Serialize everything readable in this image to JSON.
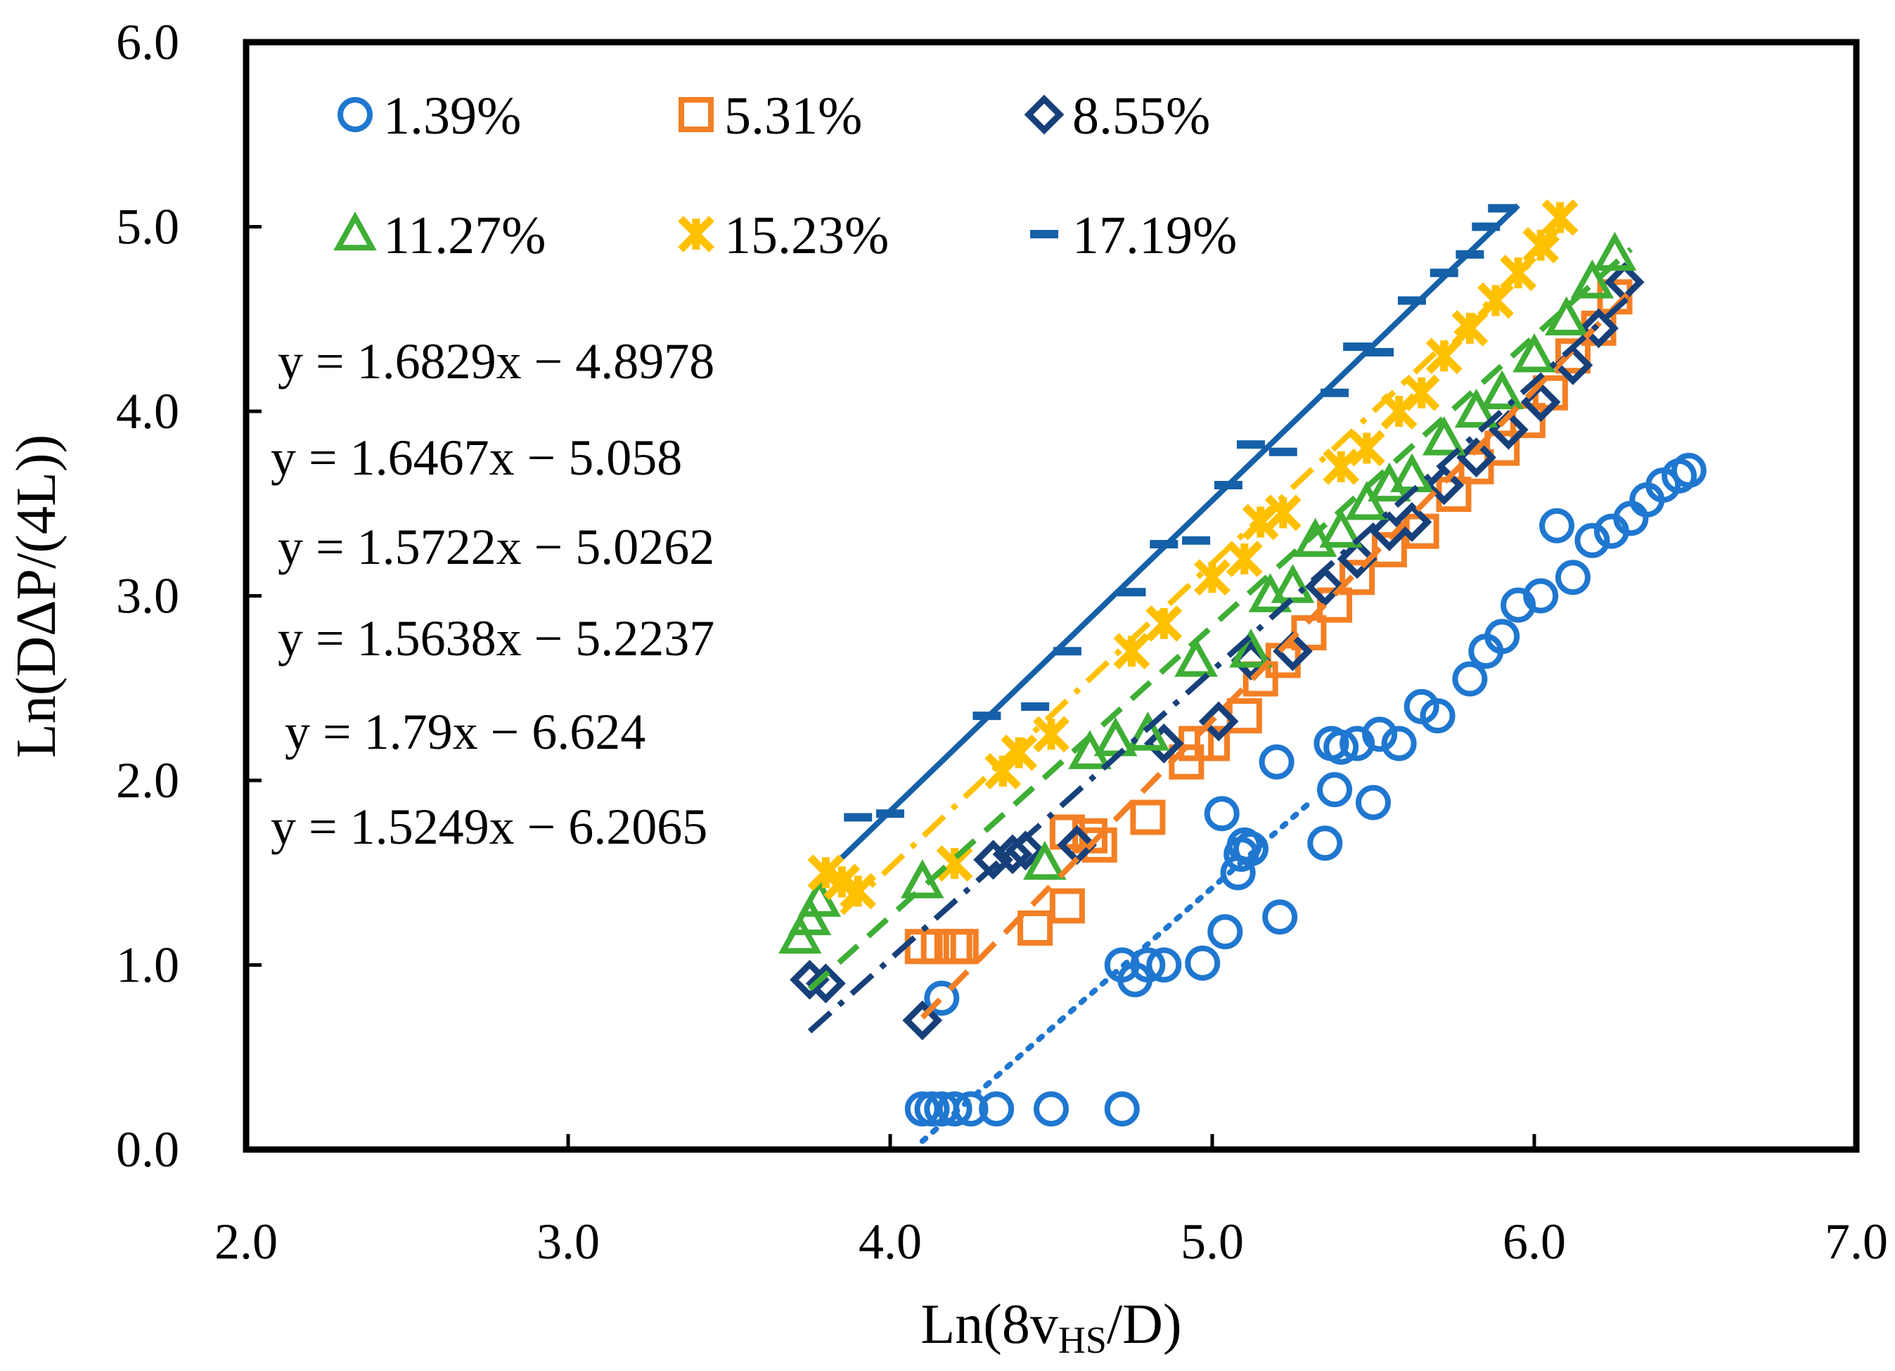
{
  "chart_data": {
    "type": "scatter",
    "title": "",
    "xlabel": "Ln(8v",
    "xlabel_sub": "HS",
    "xlabel_tail": "/D)",
    "ylabel": "Ln(DΔP/(4L))",
    "xlim": [
      2.0,
      7.0
    ],
    "ylim": [
      0.0,
      6.0
    ],
    "xticks": [
      "2.0",
      "3.0",
      "4.0",
      "5.0",
      "6.0",
      "7.0"
    ],
    "yticks": [
      "0.0",
      "1.0",
      "2.0",
      "3.0",
      "4.0",
      "5.0",
      "6.0"
    ],
    "grid": false,
    "legend_position": "top-left",
    "series": [
      {
        "name": "1.39%",
        "marker": "circle",
        "color": "#1F77D0",
        "line": "dotted",
        "slope": 1.5249,
        "intercept": -6.2065,
        "fit_x": [
          4.1,
          5.3
        ],
        "x": [
          4.1,
          4.13,
          4.16,
          4.2,
          4.25,
          4.33,
          4.5,
          4.72,
          4.16,
          4.72,
          4.76,
          4.8,
          4.85,
          4.97,
          5.04,
          5.08,
          5.1,
          5.21,
          5.03,
          5.09,
          5.12,
          5.2,
          5.35,
          5.38,
          5.37,
          5.4,
          5.45,
          5.5,
          5.52,
          5.58,
          5.65,
          5.7,
          5.8,
          5.85,
          5.9,
          5.95,
          6.02,
          6.07,
          6.12,
          6.18,
          6.24,
          6.3,
          6.35,
          6.4,
          6.45,
          6.48
        ],
        "y": [
          0.22,
          0.22,
          0.22,
          0.22,
          0.22,
          0.22,
          0.22,
          0.22,
          0.82,
          1.0,
          0.92,
          1.0,
          1.0,
          1.01,
          1.18,
          1.5,
          1.65,
          1.26,
          1.82,
          1.6,
          1.63,
          2.1,
          1.66,
          1.95,
          2.2,
          2.18,
          2.2,
          1.88,
          2.25,
          2.2,
          2.4,
          2.35,
          2.55,
          2.7,
          2.78,
          2.95,
          3.0,
          3.38,
          3.1,
          3.3,
          3.35,
          3.42,
          3.52,
          3.6,
          3.65,
          3.68
        ]
      },
      {
        "name": "5.31%",
        "marker": "square",
        "color": "#F47F24",
        "line": "dashed",
        "slope": 1.79,
        "intercept": -6.624,
        "fit_x": [
          4.1,
          6.3
        ],
        "x": [
          4.1,
          4.15,
          4.2,
          4.22,
          4.45,
          4.55,
          4.55,
          4.62,
          4.65,
          4.8,
          4.92,
          4.95,
          5.0,
          5.1,
          5.15,
          5.22,
          5.3,
          5.38,
          5.45,
          5.55,
          5.65,
          5.75,
          5.82,
          5.9,
          5.98,
          6.05,
          6.12,
          6.2,
          6.25
        ],
        "y": [
          1.1,
          1.1,
          1.1,
          1.1,
          1.2,
          1.32,
          1.72,
          1.7,
          1.65,
          1.8,
          2.1,
          2.2,
          2.2,
          2.35,
          2.55,
          2.65,
          2.8,
          2.95,
          3.1,
          3.25,
          3.35,
          3.55,
          3.7,
          3.8,
          3.95,
          4.1,
          4.3,
          4.45,
          4.62
        ]
      },
      {
        "name": "8.55%",
        "marker": "diamond",
        "color": "#17407A",
        "line": "dashdot",
        "slope": 1.5638,
        "intercept": -5.2237,
        "fit_x": [
          3.75,
          6.3
        ],
        "x": [
          3.75,
          3.8,
          4.1,
          4.32,
          4.38,
          4.42,
          4.58,
          4.85,
          5.02,
          5.12,
          5.25,
          5.35,
          5.45,
          5.55,
          5.62,
          5.72,
          5.82,
          5.92,
          6.02,
          6.12,
          6.2,
          6.28
        ],
        "y": [
          0.92,
          0.9,
          0.7,
          1.57,
          1.6,
          1.62,
          1.65,
          2.2,
          2.32,
          2.65,
          2.7,
          3.05,
          3.2,
          3.35,
          3.4,
          3.6,
          3.75,
          3.9,
          4.05,
          4.25,
          4.45,
          4.7
        ]
      },
      {
        "name": "11.27%",
        "marker": "triangle",
        "color": "#3EAE35",
        "line": "dashed",
        "slope": 1.5722,
        "intercept": -5.0262,
        "fit_x": [
          3.75,
          6.3
        ],
        "x": [
          3.72,
          3.75,
          3.78,
          4.1,
          4.48,
          4.62,
          4.7,
          4.8,
          4.95,
          5.12,
          5.18,
          5.25,
          5.32,
          5.4,
          5.48,
          5.55,
          5.62,
          5.72,
          5.82,
          5.9,
          6.0,
          6.1,
          6.18,
          6.25
        ],
        "y": [
          1.15,
          1.25,
          1.35,
          1.45,
          1.55,
          2.15,
          2.22,
          2.25,
          2.65,
          2.7,
          3.0,
          3.05,
          3.3,
          3.35,
          3.5,
          3.6,
          3.65,
          3.85,
          4.0,
          4.1,
          4.3,
          4.5,
          4.7,
          4.85
        ]
      },
      {
        "name": "15.23%",
        "marker": "x",
        "color": "#FFC000",
        "line": "dashdot",
        "slope": 1.6467,
        "intercept": -5.058,
        "fit_x": [
          3.85,
          6.1
        ],
        "x": [
          3.8,
          3.85,
          3.9,
          4.2,
          4.35,
          4.4,
          4.5,
          4.75,
          4.85,
          5.0,
          5.1,
          5.15,
          5.22,
          5.4,
          5.48,
          5.58,
          5.65,
          5.72,
          5.8,
          5.88,
          5.95,
          6.02,
          6.08
        ],
        "y": [
          1.5,
          1.45,
          1.4,
          1.55,
          2.05,
          2.15,
          2.25,
          2.7,
          2.85,
          3.1,
          3.2,
          3.4,
          3.45,
          3.7,
          3.8,
          4.0,
          4.1,
          4.3,
          4.45,
          4.6,
          4.75,
          4.9,
          5.05
        ]
      },
      {
        "name": "17.19%",
        "marker": "dash",
        "color": "#1560A8",
        "line": "solid",
        "slope": 1.6829,
        "intercept": -4.8978,
        "fit_x": [
          3.85,
          5.95
        ],
        "x": [
          3.9,
          4.0,
          4.3,
          4.45,
          4.55,
          4.75,
          4.85,
          4.95,
          5.05,
          5.12,
          5.22,
          5.38,
          5.45,
          5.52,
          5.62,
          5.72,
          5.8,
          5.85,
          5.9
        ],
        "y": [
          1.8,
          1.82,
          2.35,
          2.4,
          2.7,
          3.02,
          3.28,
          3.3,
          3.6,
          3.82,
          3.78,
          4.1,
          4.35,
          4.32,
          4.6,
          4.75,
          4.85,
          5.0,
          5.1
        ]
      }
    ],
    "equations": [
      "y = 1.6829x − 4.8978",
      "y = 1.6467x − 5.058",
      "y = 1.5722x − 5.0262",
      "y = 1.5638x − 5.2237",
      "y = 1.79x − 6.624",
      "y = 1.5249x − 6.2065"
    ]
  }
}
